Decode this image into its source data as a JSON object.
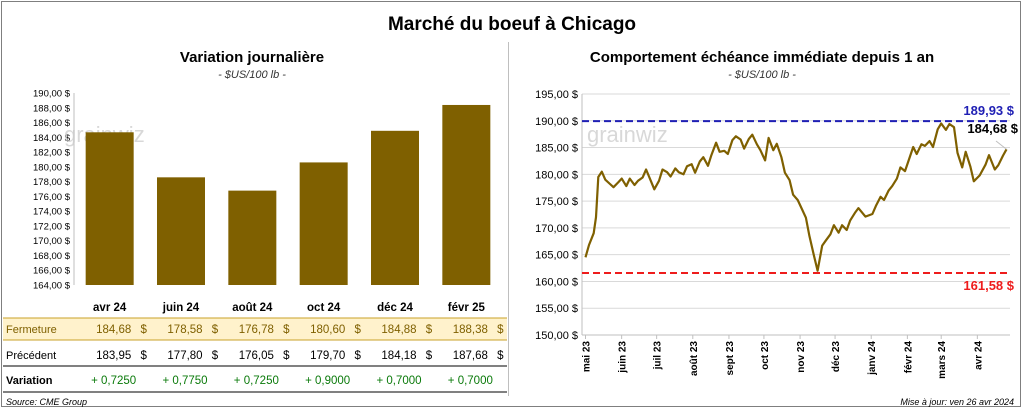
{
  "main_title": "Marché du boeuf à Chicago",
  "source": "Source: CME Group",
  "updated": "Mise à jour: ven 26 avr 2024",
  "watermark": "grainwiz",
  "colors": {
    "bar": "#7f6000",
    "line": "#7f6000",
    "high_line": "#1f1fb4",
    "low_line": "#ee1c1c",
    "close_row_bg": "#fff2cc",
    "positive": "#0a7a0a"
  },
  "chart_data": [
    {
      "type": "bar",
      "title": "Variation journalière",
      "subtitle": "- $US/100 lb -",
      "categories": [
        "avr 24",
        "juin 24",
        "août 24",
        "oct 24",
        "déc 24",
        "févr 25"
      ],
      "values": [
        184.68,
        178.58,
        176.78,
        180.6,
        184.88,
        188.38
      ],
      "ylim": [
        164,
        190
      ],
      "yticks": [
        "164,00 $",
        "166,00 $",
        "168,00 $",
        "170,00 $",
        "172,00 $",
        "174,00 $",
        "176,00 $",
        "178,00 $",
        "180,00 $",
        "182,00 $",
        "184,00 $",
        "186,00 $",
        "188,00 $",
        "190,00 $"
      ],
      "grid": false,
      "table": {
        "rows": [
          {
            "label": "Fermeture",
            "values": [
              "184,68",
              "178,58",
              "176,78",
              "180,60",
              "184,88",
              "188,38"
            ],
            "unit": "$"
          },
          {
            "label": "Précédent",
            "values": [
              "183,95",
              "177,80",
              "176,05",
              "179,70",
              "184,18",
              "187,68"
            ],
            "unit": "$"
          },
          {
            "label": "Variation",
            "values": [
              "+ 0,7250",
              "+ 0,7750",
              "+ 0,7250",
              "+ 0,9000",
              "+ 0,7000",
              "+ 0,7000"
            ]
          }
        ]
      }
    },
    {
      "type": "line",
      "title": "Comportement  échéance immédiate depuis 1 an",
      "subtitle": "- $US/100 lb -",
      "ylim": [
        150,
        195
      ],
      "yticks": [
        "150,00 $",
        "155,00 $",
        "160,00 $",
        "165,00 $",
        "170,00 $",
        "175,00 $",
        "180,00 $",
        "185,00 $",
        "190,00 $",
        "195,00 $"
      ],
      "xticks": [
        "mai 23",
        "juin 23",
        "juil 23",
        "août 23",
        "sept 23",
        "oct 23",
        "nov 23",
        "déc 23",
        "janv 24",
        "févr 24",
        "mars 24",
        "avr 24"
      ],
      "grid": "horizontal",
      "high": {
        "value": 189.93,
        "label": "189,93 $"
      },
      "low": {
        "value": 161.58,
        "label": "161,58 $"
      },
      "last": {
        "value": 184.68,
        "label": "184,68 $"
      },
      "x": [
        "2023-05-01",
        "2023-05-04",
        "2023-05-08",
        "2023-05-10",
        "2023-05-12",
        "2023-05-15",
        "2023-05-18",
        "2023-05-22",
        "2023-05-25",
        "2023-05-29",
        "2023-06-01",
        "2023-06-05",
        "2023-06-08",
        "2023-06-12",
        "2023-06-15",
        "2023-06-19",
        "2023-06-22",
        "2023-06-26",
        "2023-06-29",
        "2023-07-03",
        "2023-07-06",
        "2023-07-10",
        "2023-07-13",
        "2023-07-17",
        "2023-07-20",
        "2023-07-24",
        "2023-07-27",
        "2023-07-31",
        "2023-08-03",
        "2023-08-07",
        "2023-08-10",
        "2023-08-14",
        "2023-08-17",
        "2023-08-21",
        "2023-08-24",
        "2023-08-28",
        "2023-08-31",
        "2023-09-04",
        "2023-09-07",
        "2023-09-11",
        "2023-09-14",
        "2023-09-18",
        "2023-09-21",
        "2023-09-25",
        "2023-09-28",
        "2023-10-02",
        "2023-10-05",
        "2023-10-09",
        "2023-10-12",
        "2023-10-16",
        "2023-10-19",
        "2023-10-23",
        "2023-10-26",
        "2023-10-30",
        "2023-11-02",
        "2023-11-06",
        "2023-11-09",
        "2023-11-13",
        "2023-11-16",
        "2023-11-20",
        "2023-11-23",
        "2023-11-27",
        "2023-11-30",
        "2023-12-04",
        "2023-12-07",
        "2023-12-11",
        "2023-12-14",
        "2023-12-18",
        "2023-12-21",
        "2023-12-27",
        "2024-01-02",
        "2024-01-05",
        "2024-01-09",
        "2024-01-12",
        "2024-01-16",
        "2024-01-19",
        "2024-01-23",
        "2024-01-26",
        "2024-01-30",
        "2024-02-02",
        "2024-02-06",
        "2024-02-09",
        "2024-02-13",
        "2024-02-16",
        "2024-02-20",
        "2024-02-23",
        "2024-02-27",
        "2024-03-01",
        "2024-03-05",
        "2024-03-08",
        "2024-03-12",
        "2024-03-15",
        "2024-03-19",
        "2024-03-22",
        "2024-03-26",
        "2024-03-29",
        "2024-04-03",
        "2024-04-08",
        "2024-04-11",
        "2024-04-16",
        "2024-04-19",
        "2024-04-23",
        "2024-04-26"
      ],
      "values": [
        164.5,
        166.8,
        169,
        172,
        179.5,
        180.5,
        179,
        178.2,
        177.6,
        178.5,
        179.2,
        177.8,
        179.2,
        178,
        178.8,
        179.4,
        180.9,
        178.8,
        177.2,
        178.8,
        180.9,
        180.4,
        179.6,
        181.1,
        180.4,
        180,
        181.5,
        181.9,
        180.3,
        182.4,
        183.2,
        181.6,
        183.6,
        185.9,
        184.2,
        184.4,
        183.8,
        186.4,
        187.1,
        186.5,
        184.8,
        186.6,
        187.4,
        185.6,
        184.5,
        182.6,
        186.8,
        184.5,
        185.7,
        183.2,
        180.3,
        178.9,
        176.2,
        175.2,
        173.8,
        171.9,
        168.5,
        164.7,
        162,
        166.7,
        167.6,
        168.8,
        170.5,
        169.1,
        170.5,
        169.6,
        171.4,
        172.8,
        173.7,
        172.1,
        172.6,
        174.1,
        175.8,
        175.2,
        177,
        177.8,
        179.2,
        181.3,
        180.6,
        182.5,
        185.1,
        183.8,
        185.6,
        185.3,
        186.2,
        185.1,
        188.4,
        189.5,
        188.3,
        189.4,
        188.8,
        184,
        181.3,
        184.2,
        181.5,
        178.7,
        179.8,
        181.8,
        183.6,
        180.9,
        181.7,
        183.5,
        184.68
      ]
    }
  ]
}
